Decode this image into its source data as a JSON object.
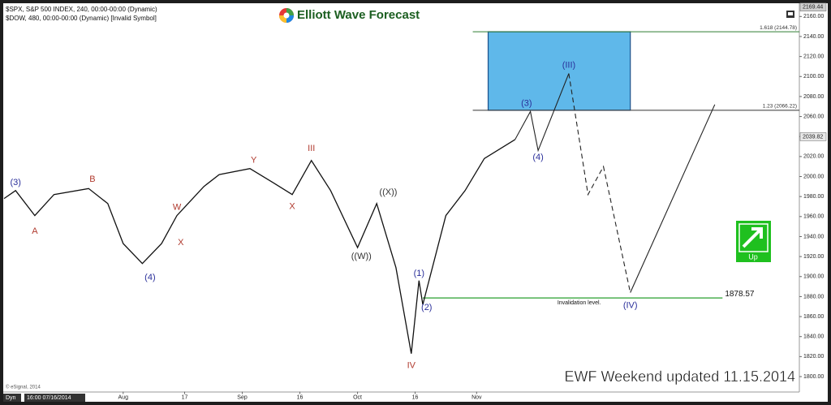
{
  "chart_data": {
    "type": "line",
    "header": [
      "$SPX, S&P 500 INDEX, 240, 00:00-00:00 (Dynamic)",
      "$DOW, 480, 00:00-00:00 (Dynamic) [Invalid Symbol]"
    ],
    "logo": "Elliott Wave Forecast",
    "footer": "EWF Weekend updated 11.15.2014",
    "copyright": "© eSignal, 2014",
    "mode_label": "Dyn",
    "cursor_label": "16:00 07/16/2014",
    "button_label": "Up",
    "color": "#111111",
    "xlim": [
      "2014-07-01",
      "2015-01-24"
    ],
    "ylim": [
      1785,
      2170
    ],
    "xticks": [
      {
        "value": "2014-08-01",
        "label": "Aug"
      },
      {
        "value": "2014-08-17",
        "label": "17"
      },
      {
        "value": "2014-09-01",
        "label": "Sep"
      },
      {
        "value": "2014-09-16",
        "label": "16"
      },
      {
        "value": "2014-10-01",
        "label": "Oct"
      },
      {
        "value": "2014-10-16",
        "label": "16"
      },
      {
        "value": "2014-11-01",
        "label": "Nov"
      }
    ],
    "yticks": [
      {
        "value": 1800,
        "label": "1800.00"
      },
      {
        "value": 1820,
        "label": "1820.00"
      },
      {
        "value": 1840,
        "label": "1840.00"
      },
      {
        "value": 1860,
        "label": "1860.00"
      },
      {
        "value": 1880,
        "label": "1880.00"
      },
      {
        "value": 1900,
        "label": "1900.00"
      },
      {
        "value": 1920,
        "label": "1920.00"
      },
      {
        "value": 1940,
        "label": "1940.00"
      },
      {
        "value": 1960,
        "label": "1960.00"
      },
      {
        "value": 1980,
        "label": "1980.00"
      },
      {
        "value": 2000,
        "label": "2000.00"
      },
      {
        "value": 2020,
        "label": "2020.00"
      },
      {
        "value": 2040,
        "label": "2040.00"
      },
      {
        "value": 2060,
        "label": "2060.00"
      },
      {
        "value": 2080,
        "label": "2080.00"
      },
      {
        "value": 2100,
        "label": "2100.00"
      },
      {
        "value": 2120,
        "label": "2120.00"
      },
      {
        "value": 2140,
        "label": "2140.00"
      },
      {
        "value": 2160,
        "label": "2160.00"
      }
    ],
    "price_labels": [
      {
        "value": 2169.44,
        "label": "2169.44"
      },
      {
        "value": 2039.82,
        "label": "2039.82"
      }
    ],
    "price": {
      "x": [
        "2014-07-01",
        "2014-07-04",
        "2014-07-09",
        "2014-07-14",
        "2014-07-23",
        "2014-07-28",
        "2014-08-01",
        "2014-08-06",
        "2014-08-11",
        "2014-08-15",
        "2014-08-22",
        "2014-08-26",
        "2014-09-03",
        "2014-09-09",
        "2014-09-14",
        "2014-09-19",
        "2014-09-24",
        "2014-10-01",
        "2014-10-06",
        "2014-10-11",
        "2014-10-15",
        "2014-10-17",
        "2014-10-18",
        "2014-10-24",
        "2014-10-29",
        "2014-11-03",
        "2014-11-11"
      ],
      "values": [
        1978,
        1986,
        1961,
        1982,
        1988,
        1973,
        1933,
        1913,
        1933,
        1961,
        1990,
        2002,
        2008,
        1994,
        1982,
        2016,
        1986,
        1929,
        1973,
        1909,
        1823,
        1896,
        1872,
        1961,
        1986,
        2018,
        2037
      ]
    },
    "projections": [
      {
        "style": "solid",
        "x": [
          "2014-11-11",
          "2014-11-15",
          "2014-11-17",
          "2014-11-25"
        ],
        "values": [
          2037,
          2065,
          2026,
          2103
        ]
      },
      {
        "style": "dashed",
        "x": [
          "2014-11-25",
          "2014-11-30",
          "2014-12-04",
          "2014-12-11"
        ],
        "values": [
          2103,
          1982,
          2010,
          1884
        ]
      },
      {
        "style": "solid",
        "x": [
          "2014-12-11",
          "2015-01-02"
        ],
        "values": [
          1884,
          2072
        ]
      }
    ],
    "target_box": {
      "x": [
        "2014-11-04",
        "2014-12-11"
      ],
      "y": [
        2066.22,
        2144.78
      ],
      "color": "#5fb8ea"
    },
    "fib_levels": [
      {
        "value": 2144.78,
        "label": "1.618 (2144.78)",
        "start": "2014-10-31",
        "color": "#2e7d32"
      },
      {
        "value": 2066.22,
        "label": "1.23 (2066.22)",
        "start": "2014-10-31",
        "color": "#333333"
      }
    ],
    "invalidation": {
      "value": 1878.57,
      "label": "1878.57",
      "text": "Invalidation level.",
      "x": [
        "2014-10-18",
        "2015-01-04"
      ],
      "color": "#4caf50"
    },
    "annotations": [
      {
        "text": "(3)",
        "x": "2014-07-04",
        "y": 1994,
        "color": "#2a2f9a"
      },
      {
        "text": "A",
        "x": "2014-07-09",
        "y": 1945,
        "color": "#b03a2e"
      },
      {
        "text": "B",
        "x": "2014-07-24",
        "y": 1997,
        "color": "#b03a2e"
      },
      {
        "text": "(4)",
        "x": "2014-08-08",
        "y": 1899,
        "color": "#2a2f9a"
      },
      {
        "text": "W",
        "x": "2014-08-15",
        "y": 1969,
        "color": "#b03a2e"
      },
      {
        "text": "X",
        "x": "2014-08-16",
        "y": 1934,
        "color": "#b03a2e"
      },
      {
        "text": "Y",
        "x": "2014-09-04",
        "y": 2016,
        "color": "#b03a2e"
      },
      {
        "text": "III",
        "x": "2014-09-19",
        "y": 2028,
        "color": "#b03a2e"
      },
      {
        "text": "X",
        "x": "2014-09-14",
        "y": 1970,
        "color": "#b03a2e"
      },
      {
        "text": "((W))",
        "x": "2014-10-02",
        "y": 1920,
        "color": "#333333"
      },
      {
        "text": "((X))",
        "x": "2014-10-09",
        "y": 1984,
        "color": "#333333"
      },
      {
        "text": "IV",
        "x": "2014-10-15",
        "y": 1811,
        "color": "#b03a2e"
      },
      {
        "text": "(1)",
        "x": "2014-10-17",
        "y": 1903,
        "color": "#2a2f9a"
      },
      {
        "text": "(2)",
        "x": "2014-10-19",
        "y": 1869,
        "color": "#2a2f9a"
      },
      {
        "text": "(3)",
        "x": "2014-11-14",
        "y": 2073,
        "color": "#2a2f9a"
      },
      {
        "text": "(4)",
        "x": "2014-11-17",
        "y": 2019,
        "color": "#2a2f9a"
      },
      {
        "text": "(III)",
        "x": "2014-11-25",
        "y": 2111,
        "color": "#2a2f9a"
      },
      {
        "text": "(IV)",
        "x": "2014-12-11",
        "y": 1871,
        "color": "#2a2f9a"
      }
    ]
  }
}
